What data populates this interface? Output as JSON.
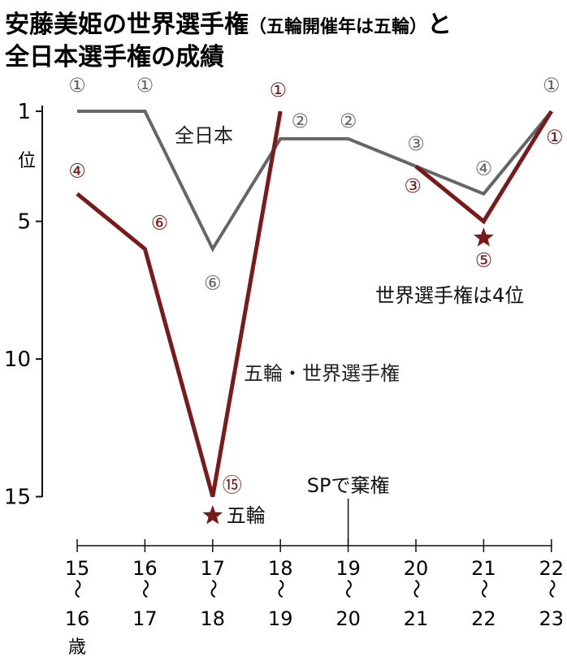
{
  "title": {
    "line1_main": "安藤美姫の世界選手権",
    "line1_paren": "（五輪開催年は五輪）",
    "line1_end": "と",
    "line2": "全日本選手権の成績"
  },
  "chart_data": {
    "type": "line",
    "y_unit_label": "位",
    "x_unit_label": "歳",
    "y_axis": {
      "reversed": true,
      "lim": [
        1,
        15
      ],
      "ticks": [
        1,
        5,
        10,
        15
      ]
    },
    "x_top": [
      "15",
      "16",
      "17",
      "18",
      "19",
      "20",
      "21",
      "22"
    ],
    "x_bottom": [
      "16",
      "17",
      "18",
      "19",
      "20",
      "21",
      "22",
      "23"
    ],
    "x_sep": "〜",
    "colors": {
      "zennihon": "#666666",
      "world": "#7a1a1a"
    },
    "series": [
      {
        "name": "全日本",
        "values": [
          1,
          1,
          6,
          2,
          2,
          3,
          4,
          1
        ],
        "markers": [
          "①",
          "①",
          "⑥",
          "②",
          "②",
          "③",
          "④",
          "①"
        ]
      },
      {
        "name": "五輪・世界選手権",
        "values": [
          4,
          6,
          15,
          1,
          null,
          3,
          5,
          1
        ],
        "markers": [
          "④",
          "⑥",
          "⑮",
          "①",
          "",
          "③",
          "⑤",
          "①"
        ]
      }
    ],
    "annotations": {
      "olympics": "五輪",
      "sp_withdraw": "SPで棄権",
      "world_4th": "世界選手権は4位"
    }
  }
}
